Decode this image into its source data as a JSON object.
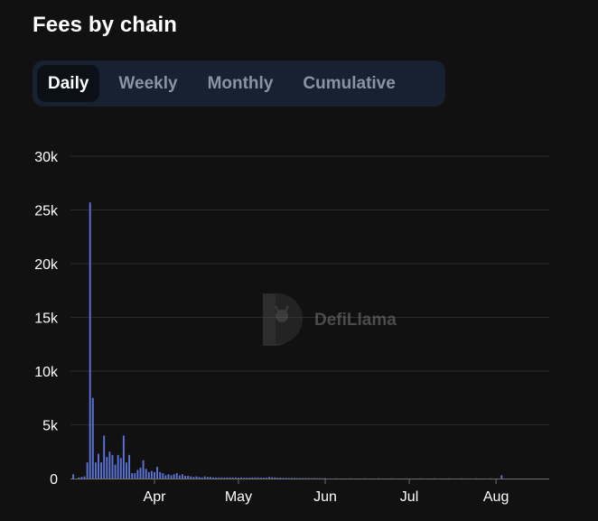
{
  "header": {
    "title": "Fees by chain"
  },
  "tabs": [
    {
      "label": "Daily",
      "active": true
    },
    {
      "label": "Weekly",
      "active": false
    },
    {
      "label": "Monthly",
      "active": false
    },
    {
      "label": "Cumulative",
      "active": false
    }
  ],
  "watermark": {
    "text": "DefiLlama",
    "icon": "llama-logo-icon"
  },
  "colors": {
    "bar": "#5a73d4",
    "grid": "#2a2a2a",
    "background": "#111111"
  },
  "chart_data": {
    "type": "bar",
    "title": "",
    "xlabel": "",
    "ylabel": "",
    "ylim": [
      0,
      30000
    ],
    "yticks": [
      0,
      5000,
      10000,
      15000,
      20000,
      25000,
      30000
    ],
    "ytick_labels": [
      "0",
      "5k",
      "10k",
      "15k",
      "20k",
      "25k",
      "30k"
    ],
    "xticks": [
      {
        "date": "2023-04-01",
        "label": "Apr"
      },
      {
        "date": "2023-05-01",
        "label": "May"
      },
      {
        "date": "2023-06-01",
        "label": "Jun"
      },
      {
        "date": "2023-07-01",
        "label": "Jul"
      },
      {
        "date": "2023-08-01",
        "label": "Aug"
      }
    ],
    "x_range": [
      "2023-03-02",
      "2023-08-20"
    ],
    "grid": true,
    "series": [
      {
        "dates": [
          "2023-03-03",
          "2023-03-04",
          "2023-03-05",
          "2023-03-06",
          "2023-03-07",
          "2023-03-08",
          "2023-03-09",
          "2023-03-10",
          "2023-03-11",
          "2023-03-12",
          "2023-03-13",
          "2023-03-14",
          "2023-03-15",
          "2023-03-16",
          "2023-03-17",
          "2023-03-18",
          "2023-03-19",
          "2023-03-20",
          "2023-03-21",
          "2023-03-22",
          "2023-03-23",
          "2023-03-24",
          "2023-03-25",
          "2023-03-26",
          "2023-03-27",
          "2023-03-28",
          "2023-03-29",
          "2023-03-30",
          "2023-03-31",
          "2023-04-01",
          "2023-04-02",
          "2023-04-03",
          "2023-04-04",
          "2023-04-05",
          "2023-04-06",
          "2023-04-07",
          "2023-04-08",
          "2023-04-09",
          "2023-04-10",
          "2023-04-11",
          "2023-04-12",
          "2023-04-13",
          "2023-04-14",
          "2023-04-15",
          "2023-04-16",
          "2023-04-17",
          "2023-04-18",
          "2023-04-19",
          "2023-04-20",
          "2023-04-21",
          "2023-04-22",
          "2023-04-23",
          "2023-04-24",
          "2023-04-25",
          "2023-04-26",
          "2023-04-27",
          "2023-04-28",
          "2023-04-29",
          "2023-04-30",
          "2023-05-01",
          "2023-05-02",
          "2023-05-03",
          "2023-05-04",
          "2023-05-05",
          "2023-05-06",
          "2023-05-07",
          "2023-05-08",
          "2023-05-09",
          "2023-05-10",
          "2023-05-11",
          "2023-05-12",
          "2023-05-13",
          "2023-05-14",
          "2023-05-15",
          "2023-05-16",
          "2023-05-17",
          "2023-05-18",
          "2023-05-19",
          "2023-05-20",
          "2023-05-21",
          "2023-05-22",
          "2023-05-23",
          "2023-05-24",
          "2023-05-25",
          "2023-05-26",
          "2023-05-27",
          "2023-05-28",
          "2023-05-29",
          "2023-05-30",
          "2023-05-31",
          "2023-06-01",
          "2023-06-05",
          "2023-06-10",
          "2023-06-15",
          "2023-06-20",
          "2023-06-25",
          "2023-06-30",
          "2023-07-05",
          "2023-07-10",
          "2023-07-15",
          "2023-07-20",
          "2023-07-25",
          "2023-07-30",
          "2023-08-03"
        ],
        "values": [
          400,
          0,
          100,
          150,
          200,
          1500,
          25700,
          7500,
          1500,
          2300,
          1500,
          4000,
          2000,
          2500,
          2200,
          1300,
          2200,
          1900,
          4000,
          1500,
          2200,
          500,
          500,
          800,
          1000,
          1700,
          900,
          600,
          700,
          600,
          1100,
          600,
          500,
          300,
          400,
          300,
          400,
          500,
          300,
          400,
          250,
          250,
          200,
          150,
          200,
          150,
          100,
          200,
          150,
          150,
          100,
          100,
          100,
          100,
          100,
          100,
          100,
          100,
          100,
          80,
          100,
          80,
          80,
          80,
          100,
          100,
          100,
          80,
          80,
          80,
          150,
          120,
          100,
          80,
          80,
          60,
          60,
          50,
          50,
          50,
          40,
          40,
          40,
          40,
          40,
          40,
          40,
          30,
          30,
          30,
          30,
          20,
          20,
          20,
          20,
          20,
          20,
          20,
          20,
          20,
          20,
          20,
          20,
          300
        ]
      }
    ]
  }
}
